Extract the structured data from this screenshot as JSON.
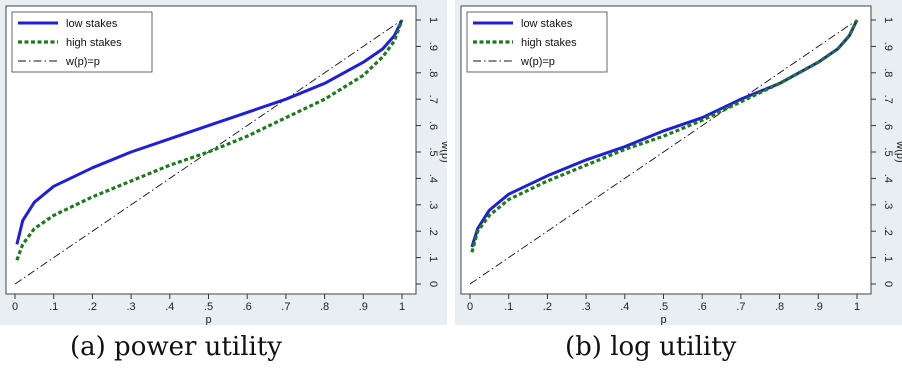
{
  "chart_data": [
    {
      "type": "line",
      "caption": "(a) power utility",
      "xlabel": "p",
      "ylabel": "w(p)",
      "xlim": [
        0,
        1
      ],
      "ylim": [
        0,
        1
      ],
      "x_ticks": [
        "0",
        ".1",
        ".2",
        ".3",
        ".4",
        ".5",
        ".6",
        ".7",
        ".8",
        ".9",
        "1"
      ],
      "y_ticks": [
        "0",
        ".1",
        ".2",
        ".3",
        ".4",
        ".5",
        ".6",
        ".7",
        ".8",
        ".9",
        "1"
      ],
      "legend_position": "top-left",
      "grid": false,
      "series": [
        {
          "name": "low stakes",
          "color": "#1f1fd6",
          "style": "solid",
          "x": [
            0.005,
            0.02,
            0.05,
            0.1,
            0.2,
            0.3,
            0.4,
            0.5,
            0.6,
            0.7,
            0.8,
            0.9,
            0.95,
            0.98,
            1.0
          ],
          "y": [
            0.15,
            0.24,
            0.31,
            0.37,
            0.44,
            0.5,
            0.55,
            0.6,
            0.65,
            0.7,
            0.76,
            0.84,
            0.89,
            0.94,
            1.0
          ]
        },
        {
          "name": "high stakes",
          "color": "#1f7a1f",
          "style": "dashed",
          "x": [
            0.005,
            0.02,
            0.05,
            0.1,
            0.2,
            0.3,
            0.4,
            0.5,
            0.6,
            0.7,
            0.8,
            0.9,
            0.95,
            0.98,
            1.0
          ],
          "y": [
            0.09,
            0.15,
            0.21,
            0.26,
            0.33,
            0.39,
            0.45,
            0.5,
            0.56,
            0.63,
            0.7,
            0.79,
            0.86,
            0.92,
            1.0
          ]
        },
        {
          "name": "w(p)=p",
          "color": "#111111",
          "style": "dashdot",
          "x": [
            0,
            1
          ],
          "y": [
            0,
            1
          ]
        }
      ]
    },
    {
      "type": "line",
      "caption": "(b) log utility",
      "xlabel": "p",
      "ylabel": "w(p)",
      "xlim": [
        0,
        1
      ],
      "ylim": [
        0,
        1
      ],
      "x_ticks": [
        "0",
        ".1",
        ".2",
        ".3",
        ".4",
        ".5",
        ".6",
        ".7",
        ".8",
        ".9",
        "1"
      ],
      "y_ticks": [
        "0",
        ".1",
        ".2",
        ".3",
        ".4",
        ".5",
        ".6",
        ".7",
        ".8",
        ".9",
        "1"
      ],
      "legend_position": "top-left",
      "grid": false,
      "series": [
        {
          "name": "low stakes",
          "color": "#1f1fd6",
          "style": "solid",
          "x": [
            0.005,
            0.02,
            0.05,
            0.1,
            0.2,
            0.3,
            0.4,
            0.5,
            0.6,
            0.7,
            0.8,
            0.9,
            0.95,
            0.98,
            1.0
          ],
          "y": [
            0.14,
            0.21,
            0.28,
            0.34,
            0.41,
            0.47,
            0.52,
            0.58,
            0.63,
            0.7,
            0.76,
            0.84,
            0.89,
            0.94,
            1.0
          ]
        },
        {
          "name": "high stakes",
          "color": "#1f7a1f",
          "style": "dashed",
          "x": [
            0.005,
            0.02,
            0.05,
            0.1,
            0.2,
            0.3,
            0.4,
            0.5,
            0.6,
            0.7,
            0.8,
            0.9,
            0.95,
            0.98,
            1.0
          ],
          "y": [
            0.12,
            0.2,
            0.26,
            0.32,
            0.39,
            0.45,
            0.51,
            0.56,
            0.62,
            0.69,
            0.76,
            0.84,
            0.89,
            0.94,
            1.0
          ]
        },
        {
          "name": "w(p)=p",
          "color": "#111111",
          "style": "dashdot",
          "x": [
            0,
            1
          ],
          "y": [
            0,
            1
          ]
        }
      ]
    }
  ]
}
